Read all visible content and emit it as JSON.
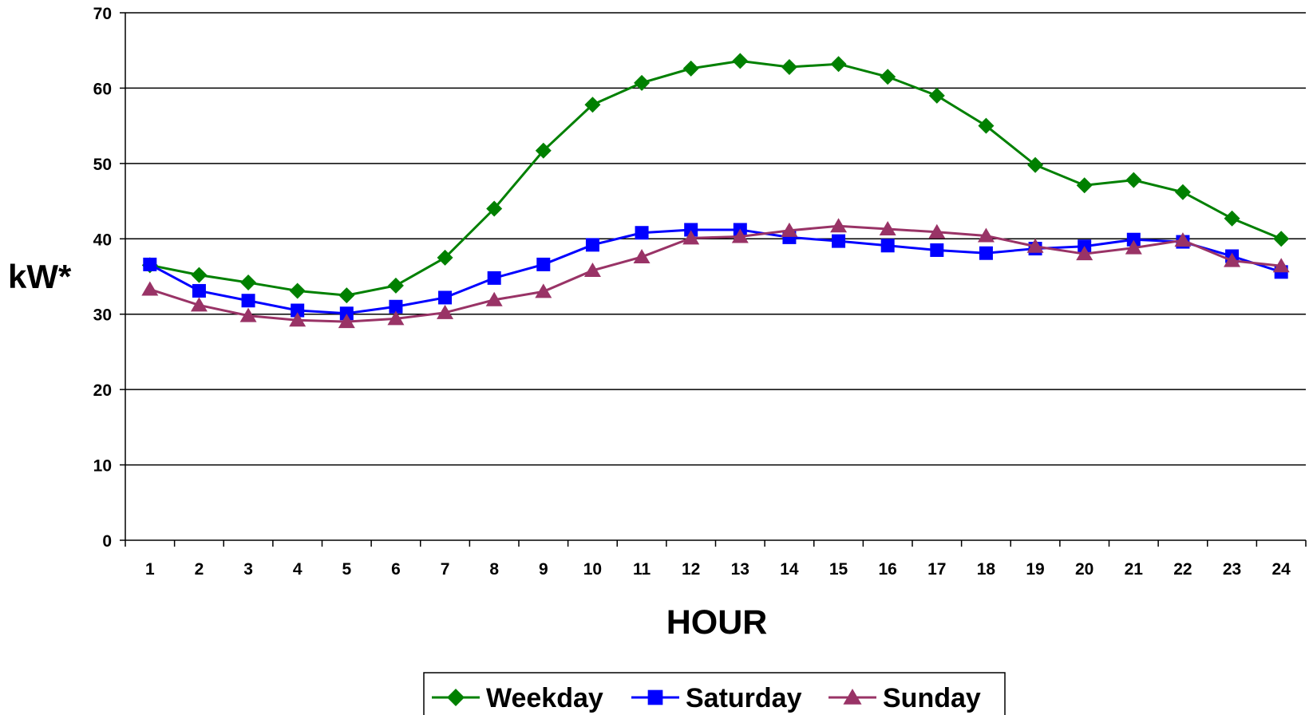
{
  "chart_data": {
    "type": "line",
    "title": "",
    "xlabel": "HOUR",
    "ylabel": "kW*",
    "categories": [
      "1",
      "2",
      "3",
      "4",
      "5",
      "6",
      "7",
      "8",
      "9",
      "10",
      "11",
      "12",
      "13",
      "14",
      "15",
      "16",
      "17",
      "18",
      "19",
      "20",
      "21",
      "22",
      "23",
      "24"
    ],
    "ylim": [
      0,
      70
    ],
    "yticks": [
      0,
      10,
      20,
      30,
      40,
      50,
      60,
      70
    ],
    "grid": "horizontal",
    "legend_position": "bottom",
    "series": [
      {
        "name": "Weekday",
        "color": "#008000",
        "marker": "diamond",
        "values": [
          36.5,
          35.2,
          34.2,
          33.1,
          32.5,
          33.8,
          37.5,
          44.0,
          51.7,
          57.8,
          60.7,
          62.6,
          63.6,
          62.8,
          63.2,
          61.5,
          59.0,
          55.0,
          49.8,
          47.1,
          47.8,
          46.2,
          42.7,
          40.0
        ]
      },
      {
        "name": "Saturday",
        "color": "#0000FF",
        "marker": "square",
        "values": [
          36.6,
          33.1,
          31.8,
          30.5,
          30.1,
          31.0,
          32.2,
          34.8,
          36.6,
          39.2,
          40.8,
          41.2,
          41.2,
          40.2,
          39.7,
          39.1,
          38.5,
          38.1,
          38.7,
          39.0,
          39.9,
          39.6,
          37.7,
          35.6
        ]
      },
      {
        "name": "Sunday",
        "color": "#993366",
        "marker": "triangle",
        "values": [
          33.3,
          31.2,
          29.8,
          29.2,
          29.0,
          29.4,
          30.2,
          31.9,
          33.0,
          35.8,
          37.6,
          40.1,
          40.3,
          41.1,
          41.7,
          41.3,
          40.9,
          40.4,
          39.0,
          38.0,
          38.8,
          39.8,
          37.1,
          36.4
        ]
      }
    ]
  }
}
